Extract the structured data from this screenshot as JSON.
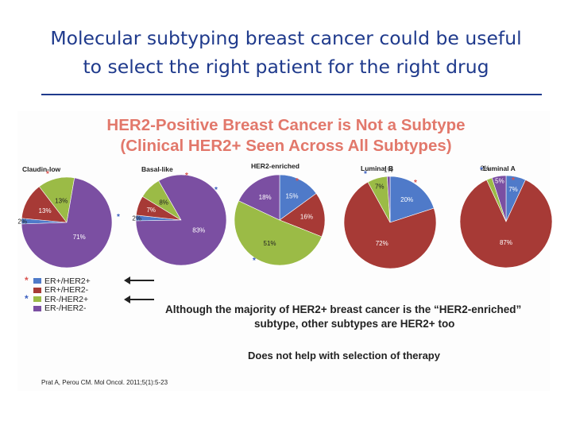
{
  "slide": {
    "title_line1": "Molecular subtyping breast cancer could be useful",
    "title_line2": "to select the right patient for the right drug"
  },
  "figure": {
    "title_line1": "HER2-Positive Breast Cancer is Not a Subtype",
    "title_line2": "(Clinical HER2+ Seen Across All Subtypes)",
    "note_line1": "Although the majority of HER2+ breast cancer is the “HER2-enriched”",
    "note_line2": "subtype, other subtypes are HER2+ too",
    "note2": "Does not help with selection of therapy",
    "citation": "Prat A, Perou CM. Mol Oncol. 2011;5(1):5-23"
  },
  "colors": {
    "er_pos_her2_pos": "#4f7ac9",
    "er_pos_her2_neg": "#a73a36",
    "er_neg_her2_pos": "#9bbb46",
    "er_neg_her2_neg": "#7b4fa2",
    "star": "#d9534f",
    "star_blue": "#3a5fbf"
  },
  "chart_data": {
    "type": "pie",
    "legend": [
      {
        "label": "ER+/HER2+",
        "color": "#4f7ac9",
        "marker": "*"
      },
      {
        "label": "ER+/HER2-",
        "color": "#a73a36",
        "marker": ""
      },
      {
        "label": "ER-/HER2+",
        "color": "#9bbb46",
        "marker": "*"
      },
      {
        "label": "ER-/HER2-",
        "color": "#7b4fa2",
        "marker": ""
      }
    ],
    "charts": [
      {
        "title": "Claudin-low",
        "slices": [
          {
            "category": "ER+/HER2+",
            "value": 2,
            "label": "2%"
          },
          {
            "category": "ER+/HER2-",
            "value": 13,
            "label": "13%"
          },
          {
            "category": "ER-/HER2+",
            "value": 13,
            "label": "13%"
          },
          {
            "category": "ER-/HER2-",
            "value": 71,
            "label": "71%"
          }
        ]
      },
      {
        "title": "Basal-like",
        "slices": [
          {
            "category": "ER+/HER2+",
            "value": 2,
            "label": "2%"
          },
          {
            "category": "ER+/HER2-",
            "value": 7,
            "label": "7%"
          },
          {
            "category": "ER-/HER2+",
            "value": 8,
            "label": "8%"
          },
          {
            "category": "ER-/HER2-",
            "value": 83,
            "label": "83%"
          }
        ]
      },
      {
        "title": "HER2-enriched",
        "slices": [
          {
            "category": "ER+/HER2+",
            "value": 15,
            "label": "15%"
          },
          {
            "category": "ER+/HER2-",
            "value": 16,
            "label": "16%"
          },
          {
            "category": "ER-/HER2+",
            "value": 51,
            "label": "51%"
          },
          {
            "category": "ER-/HER2-",
            "value": 18,
            "label": "18%"
          }
        ]
      },
      {
        "title": "Luminal B",
        "slices": [
          {
            "category": "ER+/HER2+",
            "value": 20,
            "label": "20%"
          },
          {
            "category": "ER+/HER2-",
            "value": 72,
            "label": "72%"
          },
          {
            "category": "ER-/HER2+",
            "value": 7,
            "label": "7%"
          },
          {
            "category": "ER-/HER2-",
            "value": 1,
            "label": "1%"
          }
        ]
      },
      {
        "title": "Luminal A",
        "slices": [
          {
            "category": "ER+/HER2+",
            "value": 7,
            "label": "7%"
          },
          {
            "category": "ER+/HER2-",
            "value": 87,
            "label": "87%"
          },
          {
            "category": "ER-/HER2+",
            "value": 2,
            "label": "2%"
          },
          {
            "category": "ER-/HER2-",
            "value": 5,
            "label": "5%"
          }
        ]
      }
    ]
  }
}
